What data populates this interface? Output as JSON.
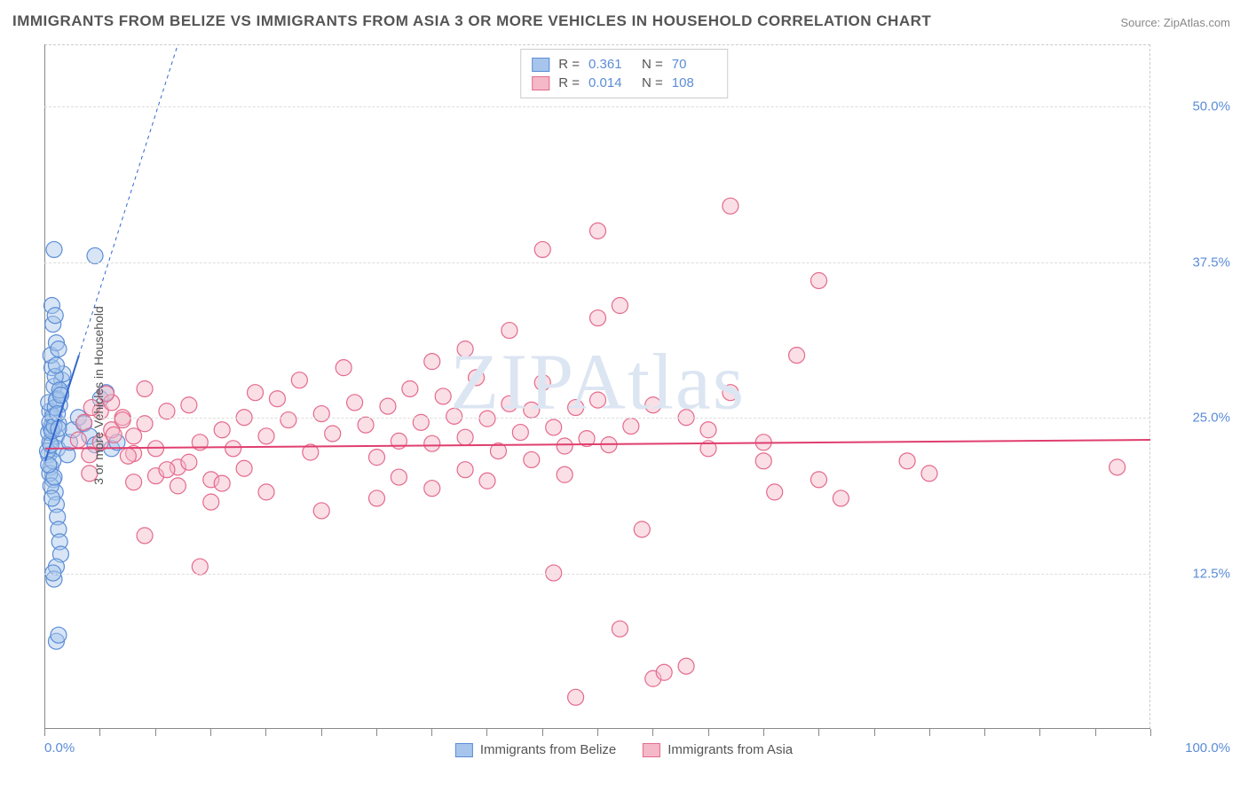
{
  "title": "IMMIGRANTS FROM BELIZE VS IMMIGRANTS FROM ASIA 3 OR MORE VEHICLES IN HOUSEHOLD CORRELATION CHART",
  "source": "Source: ZipAtlas.com",
  "watermark": "ZIPAtlas",
  "y_axis_title": "3 or more Vehicles in Household",
  "chart": {
    "type": "scatter",
    "background_color": "#ffffff",
    "grid_color": "#dddddd",
    "axis_color": "#888888",
    "xlim": [
      0,
      100
    ],
    "ylim": [
      0,
      55
    ],
    "x_ticks_minor_step": 5,
    "y_gridlines": [
      12.5,
      25.0,
      37.5,
      50.0
    ],
    "y_tick_labels": [
      "12.5%",
      "25.0%",
      "37.5%",
      "50.0%"
    ],
    "x_min_label": "0.0%",
    "x_max_label": "100.0%",
    "marker_radius": 9,
    "marker_radius_large": 12,
    "marker_opacity": 0.45,
    "marker_stroke_width": 1.2,
    "series": [
      {
        "name": "Immigrants from Belize",
        "color_fill": "#a7c5ec",
        "color_stroke": "#5b8dd6",
        "r_label": "R =",
        "r_value": "0.361",
        "n_label": "N =",
        "n_value": "70",
        "trendline": {
          "x1": 0,
          "y1": 21.5,
          "x2": 12,
          "y2": 55,
          "dash_extend": true,
          "color": "#3366cc",
          "width": 2
        },
        "points": [
          [
            0.3,
            22
          ],
          [
            0.4,
            23
          ],
          [
            0.5,
            21
          ],
          [
            0.6,
            24
          ],
          [
            0.7,
            20
          ],
          [
            0.8,
            25
          ],
          [
            0.9,
            19
          ],
          [
            1.0,
            23.5
          ],
          [
            1.1,
            22.5
          ],
          [
            1.2,
            24.5
          ],
          [
            1.3,
            26
          ],
          [
            1.4,
            27
          ],
          [
            1.5,
            28
          ],
          [
            1.6,
            28.5
          ],
          [
            1.0,
            18
          ],
          [
            1.1,
            17
          ],
          [
            1.2,
            16
          ],
          [
            1.3,
            15
          ],
          [
            1.4,
            14
          ],
          [
            1.0,
            13
          ],
          [
            0.8,
            12
          ],
          [
            0.7,
            12.5
          ],
          [
            0.6,
            29
          ],
          [
            0.5,
            30
          ],
          [
            0.8,
            27.5
          ],
          [
            0.9,
            28.3
          ],
          [
            1.0,
            29.2
          ],
          [
            1.1,
            26.5
          ],
          [
            0.4,
            25.5
          ],
          [
            0.3,
            26.2
          ],
          [
            0.5,
            24.2
          ],
          [
            4.5,
            38
          ],
          [
            0.8,
            38.5
          ],
          [
            0.6,
            34
          ],
          [
            0.7,
            32.5
          ],
          [
            0.9,
            33.2
          ],
          [
            1.0,
            31
          ],
          [
            1.2,
            30.5
          ],
          [
            2.0,
            22
          ],
          [
            2.2,
            23
          ],
          [
            2.5,
            24
          ],
          [
            3.0,
            25
          ],
          [
            3.5,
            24.5
          ],
          [
            4.0,
            23.5
          ],
          [
            4.5,
            22.8
          ],
          [
            1.0,
            7
          ],
          [
            1.2,
            7.5
          ],
          [
            5.0,
            26.5
          ],
          [
            5.5,
            27
          ],
          [
            6.0,
            22.5
          ],
          [
            6.5,
            23
          ],
          [
            0.4,
            20.5
          ],
          [
            0.5,
            19.5
          ],
          [
            0.6,
            18.5
          ],
          [
            0.7,
            21.5
          ],
          [
            0.8,
            20.2
          ],
          [
            0.3,
            23.8
          ],
          [
            0.4,
            24.6
          ],
          [
            0.2,
            22.3
          ],
          [
            0.3,
            21.2
          ],
          [
            0.5,
            22.8
          ],
          [
            0.6,
            23.9
          ],
          [
            0.7,
            25.1
          ],
          [
            0.8,
            24.3
          ],
          [
            0.9,
            25.8
          ],
          [
            1.0,
            26.4
          ],
          [
            1.1,
            25.3
          ],
          [
            1.2,
            24.1
          ],
          [
            1.3,
            27.2
          ],
          [
            1.4,
            26.8
          ]
        ]
      },
      {
        "name": "Immigrants from Asia",
        "color_fill": "#f5b8c8",
        "color_stroke": "#e46a8c",
        "r_label": "R =",
        "r_value": "0.014",
        "n_label": "N =",
        "n_value": "108",
        "trendline": {
          "x1": 0,
          "y1": 22.5,
          "x2": 100,
          "y2": 23.2,
          "dash_extend": false,
          "color": "#e03e6e",
          "width": 2
        },
        "points": [
          [
            4,
            22
          ],
          [
            5,
            23
          ],
          [
            6,
            24
          ],
          [
            7,
            25
          ],
          [
            8,
            23.5
          ],
          [
            9,
            24.5
          ],
          [
            10,
            22.5
          ],
          [
            11,
            25.5
          ],
          [
            12,
            21
          ],
          [
            13,
            26
          ],
          [
            14,
            23
          ],
          [
            15,
            20
          ],
          [
            16,
            24
          ],
          [
            17,
            22.5
          ],
          [
            18,
            25
          ],
          [
            19,
            27
          ],
          [
            20,
            23.5
          ],
          [
            21,
            26.5
          ],
          [
            22,
            24.8
          ],
          [
            23,
            28
          ],
          [
            24,
            22.2
          ],
          [
            25,
            25.3
          ],
          [
            26,
            23.7
          ],
          [
            27,
            29
          ],
          [
            28,
            26.2
          ],
          [
            29,
            24.4
          ],
          [
            30,
            21.8
          ],
          [
            31,
            25.9
          ],
          [
            32,
            23.1
          ],
          [
            33,
            27.3
          ],
          [
            34,
            24.6
          ],
          [
            35,
            22.9
          ],
          [
            36,
            26.7
          ],
          [
            37,
            25.1
          ],
          [
            38,
            23.4
          ],
          [
            39,
            28.2
          ],
          [
            40,
            24.9
          ],
          [
            41,
            22.3
          ],
          [
            42,
            26.1
          ],
          [
            43,
            23.8
          ],
          [
            44,
            25.6
          ],
          [
            45,
            27.8
          ],
          [
            46,
            24.2
          ],
          [
            47,
            22.7
          ],
          [
            48,
            25.8
          ],
          [
            49,
            23.3
          ],
          [
            50,
            26.4
          ],
          [
            45,
            38.5
          ],
          [
            42,
            32
          ],
          [
            38,
            30.5
          ],
          [
            35,
            29.5
          ],
          [
            46,
            12.5
          ],
          [
            30,
            18.5
          ],
          [
            25,
            17.5
          ],
          [
            20,
            19
          ],
          [
            15,
            18.2
          ],
          [
            12,
            19.5
          ],
          [
            10,
            20.3
          ],
          [
            8,
            19.8
          ],
          [
            55,
            4
          ],
          [
            56,
            4.5
          ],
          [
            58,
            5
          ],
          [
            48,
            2.5
          ],
          [
            52,
            8
          ],
          [
            54,
            16
          ],
          [
            50,
            33
          ],
          [
            52,
            34
          ],
          [
            55,
            26
          ],
          [
            58,
            25
          ],
          [
            60,
            24
          ],
          [
            62,
            27
          ],
          [
            65,
            23
          ],
          [
            62,
            42
          ],
          [
            50,
            40
          ],
          [
            70,
            36
          ],
          [
            68,
            30
          ],
          [
            66,
            19
          ],
          [
            72,
            18.5
          ],
          [
            78,
            21.5
          ],
          [
            80,
            20.5
          ],
          [
            97,
            21
          ],
          [
            70,
            20
          ],
          [
            65,
            21.5
          ],
          [
            60,
            22.5
          ],
          [
            5,
            25.5
          ],
          [
            6,
            26.2
          ],
          [
            7,
            24.8
          ],
          [
            8,
            22.1
          ],
          [
            9,
            27.3
          ],
          [
            4,
            20.5
          ],
          [
            3,
            23.2
          ],
          [
            3.5,
            24.6
          ],
          [
            4.2,
            25.8
          ],
          [
            5.5,
            26.9
          ],
          [
            6.2,
            23.6
          ],
          [
            7.5,
            21.9
          ],
          [
            11,
            20.8
          ],
          [
            13,
            21.4
          ],
          [
            16,
            19.7
          ],
          [
            18,
            20.9
          ],
          [
            14,
            13
          ],
          [
            9,
            15.5
          ],
          [
            32,
            20.2
          ],
          [
            35,
            19.3
          ],
          [
            38,
            20.8
          ],
          [
            40,
            19.9
          ],
          [
            44,
            21.6
          ],
          [
            47,
            20.4
          ],
          [
            51,
            22.8
          ],
          [
            53,
            24.3
          ]
        ]
      }
    ]
  },
  "legend_bottom": {
    "items": [
      {
        "swatch_fill": "#a7c5ec",
        "swatch_stroke": "#5b8dd6",
        "label": "Immigrants from Belize"
      },
      {
        "swatch_fill": "#f5b8c8",
        "swatch_stroke": "#e46a8c",
        "label": "Immigrants from Asia"
      }
    ]
  }
}
